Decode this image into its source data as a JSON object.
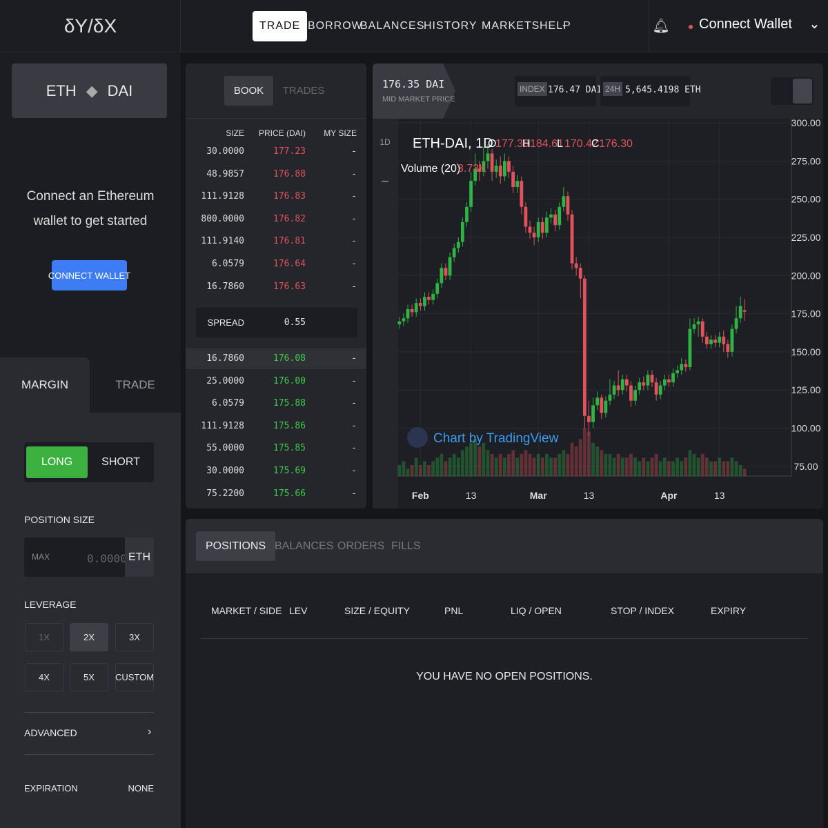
{
  "header": {
    "logo": "δY/δX",
    "nav": [
      "TRADE",
      "BORROW",
      "BALANCES",
      "HISTORY",
      "MARKETS",
      "HELP"
    ],
    "connect": "Connect Wallet"
  },
  "sidebar": {
    "market_base": "ETH",
    "market_quote": "DAI",
    "connect_prompt": [
      "Connect an Ethereum",
      "wallet to get started"
    ],
    "connect_button": "CONNECT WALLET",
    "tabs": [
      "MARGIN",
      "TRADE"
    ],
    "sides": [
      "LONG",
      "SHORT"
    ],
    "position_size_label": "POSITION SIZE",
    "max_label": "MAX",
    "size_placeholder": "0.0000",
    "size_unit": "ETH",
    "leverage_label": "LEVERAGE",
    "leverage_options": [
      "1X",
      "2X",
      "3X",
      "4X",
      "5X",
      "CUSTOM"
    ],
    "advanced": "ADVANCED",
    "expiration_label": "EXPIRATION",
    "expiration_value": "NONE"
  },
  "order_book": {
    "tabs": [
      "BOOK",
      "TRADES"
    ],
    "columns": [
      "SIZE",
      "PRICE (DAI)",
      "MY SIZE"
    ],
    "asks": [
      [
        "30.0000",
        "177.23",
        "-"
      ],
      [
        "48.9857",
        "176.88",
        "-"
      ],
      [
        "111.9128",
        "176.83",
        "-"
      ],
      [
        "800.0000",
        "176.82",
        "-"
      ],
      [
        "111.9140",
        "176.81",
        "-"
      ],
      [
        "6.0579",
        "176.64",
        "-"
      ],
      [
        "16.7860",
        "176.63",
        "-"
      ]
    ],
    "spread_label": "SPREAD",
    "spread": "0.55",
    "bids": [
      [
        "16.7860",
        "176.08",
        "-"
      ],
      [
        "25.0000",
        "176.00",
        "-"
      ],
      [
        "6.0579",
        "175.88",
        "-"
      ],
      [
        "111.9128",
        "175.86",
        "-"
      ],
      [
        "55.0000",
        "175.85",
        "-"
      ],
      [
        "30.0000",
        "175.69",
        "-"
      ],
      [
        "75.2200",
        "175.66",
        "-"
      ]
    ]
  },
  "market_info": {
    "mid_price": "176.35 DAI",
    "mid_label": "MID MARKET PRICE",
    "index_label": "INDEX",
    "index_value": "176.47 DAI",
    "volume_label": "24H",
    "volume_value": "5,645.4198 ETH"
  },
  "chart_data": {
    "type": "candlestick",
    "title": "ETH-DAI, 1D",
    "interval": "1D",
    "ohlc_labels": [
      "O",
      "H",
      "L",
      "C"
    ],
    "ohlc_values": [
      "177.30",
      "184.61",
      "170.42",
      "176.30"
    ],
    "volume_title": "Volume (20)",
    "volume_value": "3.73K",
    "watermark": "Chart by TradingView",
    "up_color": "#2fb344",
    "down_color": "#e0535c",
    "open": [
      168,
      170,
      172,
      178,
      176,
      182,
      180,
      186,
      184,
      188,
      195,
      205,
      200,
      212,
      218,
      222,
      235,
      245,
      262,
      270,
      268,
      275,
      280,
      268,
      272,
      265,
      275,
      268,
      258,
      262,
      245,
      232,
      228,
      225,
      235,
      228,
      238,
      240,
      233,
      245,
      252,
      240,
      208,
      205,
      198,
      108,
      104,
      115,
      120,
      110,
      118,
      122,
      128,
      125,
      132,
      128,
      118,
      125,
      130,
      128,
      135,
      130,
      122,
      128,
      132,
      130,
      136,
      138,
      142,
      140,
      165,
      168,
      170,
      160,
      155,
      158,
      156,
      160,
      155,
      150,
      165,
      172,
      177.3
    ],
    "high": [
      173,
      175,
      181,
      181,
      185,
      185,
      189,
      189,
      191,
      198,
      208,
      208,
      215,
      221,
      225,
      238,
      248,
      268,
      280,
      275,
      284,
      286,
      283,
      276,
      278,
      280,
      278,
      272,
      266,
      265,
      248,
      236,
      232,
      238,
      238,
      242,
      244,
      243,
      248,
      258,
      255,
      243,
      212,
      208,
      200,
      118,
      120,
      124,
      122,
      121,
      132,
      131,
      138,
      135,
      135,
      131,
      128,
      133,
      134,
      138,
      138,
      133,
      131,
      135,
      135,
      139,
      141,
      146,
      145,
      172,
      172,
      173,
      172,
      163,
      161,
      161,
      163,
      164,
      158,
      168,
      180,
      186,
      184.61
    ],
    "low": [
      165,
      167,
      169,
      173,
      173,
      177,
      177,
      181,
      181,
      185,
      192,
      197,
      197,
      209,
      215,
      219,
      232,
      242,
      259,
      262,
      265,
      270,
      262,
      264,
      260,
      262,
      264,
      254,
      254,
      240,
      228,
      224,
      220,
      222,
      224,
      225,
      234,
      229,
      230,
      242,
      236,
      204,
      200,
      185,
      100,
      95,
      100,
      112,
      106,
      107,
      115,
      119,
      121,
      122,
      124,
      114,
      115,
      122,
      125,
      125,
      127,
      118,
      119,
      125,
      127,
      127,
      133,
      135,
      137,
      138,
      162,
      160,
      156,
      152,
      152,
      153,
      153,
      150,
      146,
      147,
      162,
      169,
      170.42
    ],
    "close": [
      170,
      172,
      178,
      176,
      182,
      180,
      186,
      184,
      188,
      195,
      205,
      200,
      212,
      218,
      222,
      235,
      245,
      262,
      270,
      268,
      275,
      280,
      268,
      272,
      265,
      275,
      268,
      258,
      262,
      245,
      232,
      228,
      225,
      235,
      228,
      238,
      240,
      233,
      245,
      252,
      240,
      208,
      205,
      198,
      108,
      104,
      115,
      120,
      110,
      118,
      122,
      128,
      125,
      132,
      128,
      118,
      125,
      130,
      128,
      135,
      130,
      122,
      128,
      132,
      130,
      136,
      138,
      142,
      140,
      165,
      168,
      170,
      160,
      155,
      158,
      156,
      160,
      155,
      150,
      165,
      172,
      180,
      176.3
    ],
    "volume": [
      3,
      4,
      2,
      3,
      5,
      3,
      4,
      3,
      4,
      5,
      6,
      4,
      5,
      6,
      5,
      7,
      8,
      9,
      10,
      8,
      9,
      7,
      6,
      5,
      6,
      5,
      6,
      7,
      5,
      6,
      7,
      6,
      5,
      6,
      5,
      6,
      5,
      5,
      6,
      7,
      6,
      9,
      8,
      10,
      13,
      12,
      9,
      8,
      7,
      6,
      6,
      5,
      6,
      5,
      5,
      6,
      5,
      4,
      5,
      4,
      5,
      6,
      4,
      5,
      4,
      4,
      5,
      4,
      5,
      7,
      6,
      5,
      6,
      5,
      4,
      4,
      5,
      4,
      4,
      5,
      4,
      3,
      2
    ],
    "volume_ylim": [
      0,
      14
    ],
    "xlim": [
      -0.3,
      93.1
    ],
    "xticks": [
      {
        "value": 5,
        "label": "Feb"
      },
      {
        "value": 17,
        "label": "13"
      },
      {
        "value": 33,
        "label": "Mar"
      },
      {
        "value": 45,
        "label": "13"
      },
      {
        "value": 64,
        "label": "Apr"
      },
      {
        "value": 76,
        "label": "13"
      }
    ],
    "ylim": [
      68.6,
      301.4
    ],
    "yticks": [
      {
        "value": 75,
        "label": "75.00"
      },
      {
        "value": 100,
        "label": "100.00"
      },
      {
        "value": 125,
        "label": "125.00"
      },
      {
        "value": 150,
        "label": "150.00"
      },
      {
        "value": 175,
        "label": "175.00"
      },
      {
        "value": 200,
        "label": "200.00"
      },
      {
        "value": 225,
        "label": "225.00"
      },
      {
        "value": 250,
        "label": "250.00"
      },
      {
        "value": 275,
        "label": "275.00"
      },
      {
        "value": 300,
        "label": "300.00"
      }
    ],
    "grid": true
  },
  "positions": {
    "tabs": [
      "POSITIONS",
      "BALANCES",
      "ORDERS",
      "FILLS"
    ],
    "columns": [
      "MARKET / SIDE",
      "LEV",
      "SIZE / EQUITY",
      "PNL",
      "LIQ / OPEN",
      "STOP / INDEX",
      "EXPIRY"
    ],
    "empty": "YOU HAVE NO OPEN POSITIONS."
  }
}
